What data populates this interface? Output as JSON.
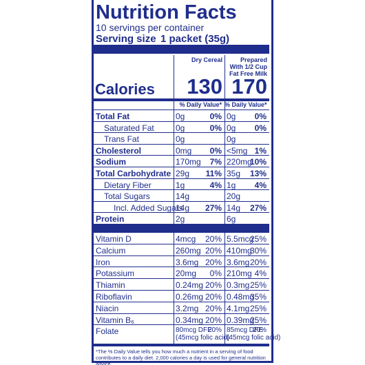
{
  "header": {
    "title": "Nutrition Facts",
    "servings": "10 servings per container",
    "serving_size_label": "Serving size",
    "serving_size_value": "1 packet (35g)"
  },
  "columns": [
    "Dry Cereal",
    "Prepared With 1/2 Cup Fat Free Milk"
  ],
  "calories": {
    "label": "Calories",
    "values": [
      "130",
      "170"
    ]
  },
  "dv_header": [
    "% Daily Value*",
    "% Daily Value*"
  ],
  "nutrients": [
    {
      "name": "Total Fat",
      "cells": [
        {
          "amount": "0g",
          "dv": "0%"
        },
        {
          "amount": "0g",
          "dv": "0%"
        }
      ]
    },
    {
      "name": "Saturated Fat",
      "cells": [
        {
          "amount": "0g",
          "dv": "0%"
        },
        {
          "amount": "0g",
          "dv": "0%"
        }
      ]
    },
    {
      "name": "Trans Fat",
      "cells": [
        {
          "amount": "0g"
        },
        {
          "amount": "0g"
        }
      ]
    },
    {
      "name": "Cholesterol",
      "cells": [
        {
          "amount": "0mg",
          "dv": "0%"
        },
        {
          "amount": "<5mg",
          "dv": "1%"
        }
      ]
    },
    {
      "name": "Sodium",
      "cells": [
        {
          "amount": "170mg",
          "dv": "7%"
        },
        {
          "amount": "220mg",
          "dv": "10%"
        }
      ]
    },
    {
      "name": "Total Carbohydrate",
      "cells": [
        {
          "amount": "29g",
          "dv": "11%"
        },
        {
          "amount": "35g",
          "dv": "13%"
        }
      ]
    },
    {
      "name": "Dietary Fiber",
      "cells": [
        {
          "amount": "1g",
          "dv": "4%"
        },
        {
          "amount": "1g",
          "dv": "4%"
        }
      ]
    },
    {
      "name": "Total Sugars",
      "cells": [
        {
          "amount": "14g"
        },
        {
          "amount": "20g"
        }
      ]
    },
    {
      "name": "Incl. Added Sugars",
      "cells": [
        {
          "amount": "14g",
          "dv": "27%"
        },
        {
          "amount": "14g",
          "dv": "27%"
        }
      ]
    },
    {
      "name": "Protein",
      "cells": [
        {
          "amount": "2g"
        },
        {
          "amount": "6g"
        }
      ]
    }
  ],
  "vitamins": [
    {
      "name": "Vitamin D",
      "cells": [
        {
          "amount": "4mcg",
          "dv": "20%"
        },
        {
          "amount": "5.5mcg",
          "dv": "25%"
        }
      ]
    },
    {
      "name": "Calcium",
      "cells": [
        {
          "amount": "260mg",
          "dv": "20%"
        },
        {
          "amount": "410mg",
          "dv": "30%"
        }
      ]
    },
    {
      "name": "Iron",
      "cells": [
        {
          "amount": "3.6mg",
          "dv": "20%"
        },
        {
          "amount": "3.6mg",
          "dv": "20%"
        }
      ]
    },
    {
      "name": "Potassium",
      "cells": [
        {
          "amount": "20mg",
          "dv": "0%"
        },
        {
          "amount": "210mg",
          "dv": "4%"
        }
      ]
    },
    {
      "name": "Thiamin",
      "cells": [
        {
          "amount": "0.24mg",
          "dv": "20%"
        },
        {
          "amount": "0.3mg",
          "dv": "25%"
        }
      ]
    },
    {
      "name": "Riboflavin",
      "cells": [
        {
          "amount": "0.26mg",
          "dv": "20%"
        },
        {
          "amount": "0.48mg",
          "dv": "35%"
        }
      ]
    },
    {
      "name": "Niacin",
      "cells": [
        {
          "amount": "3.2mg",
          "dv": "20%"
        },
        {
          "amount": "4.1mg",
          "dv": "25%"
        }
      ]
    },
    {
      "name": "Vitamin B₆",
      "cells": [
        {
          "amount": "0.34mg",
          "dv": "20%"
        },
        {
          "amount": "0.39mg",
          "dv": "25%"
        }
      ]
    },
    {
      "name": "Folate",
      "cells": [
        {
          "amount": "80mcg DFE",
          "dv": "20%",
          "note": "(45mcg folic acid)"
        },
        {
          "amount": "85mcg DFE",
          "dv": "20%",
          "note": "(45mcg folic acid)"
        }
      ]
    }
  ],
  "footnote": "*The % Daily Value tells you how much a nutrient in a serving of food contributes to a daily diet. 2,000 calories a day is used for general nutrition advice."
}
